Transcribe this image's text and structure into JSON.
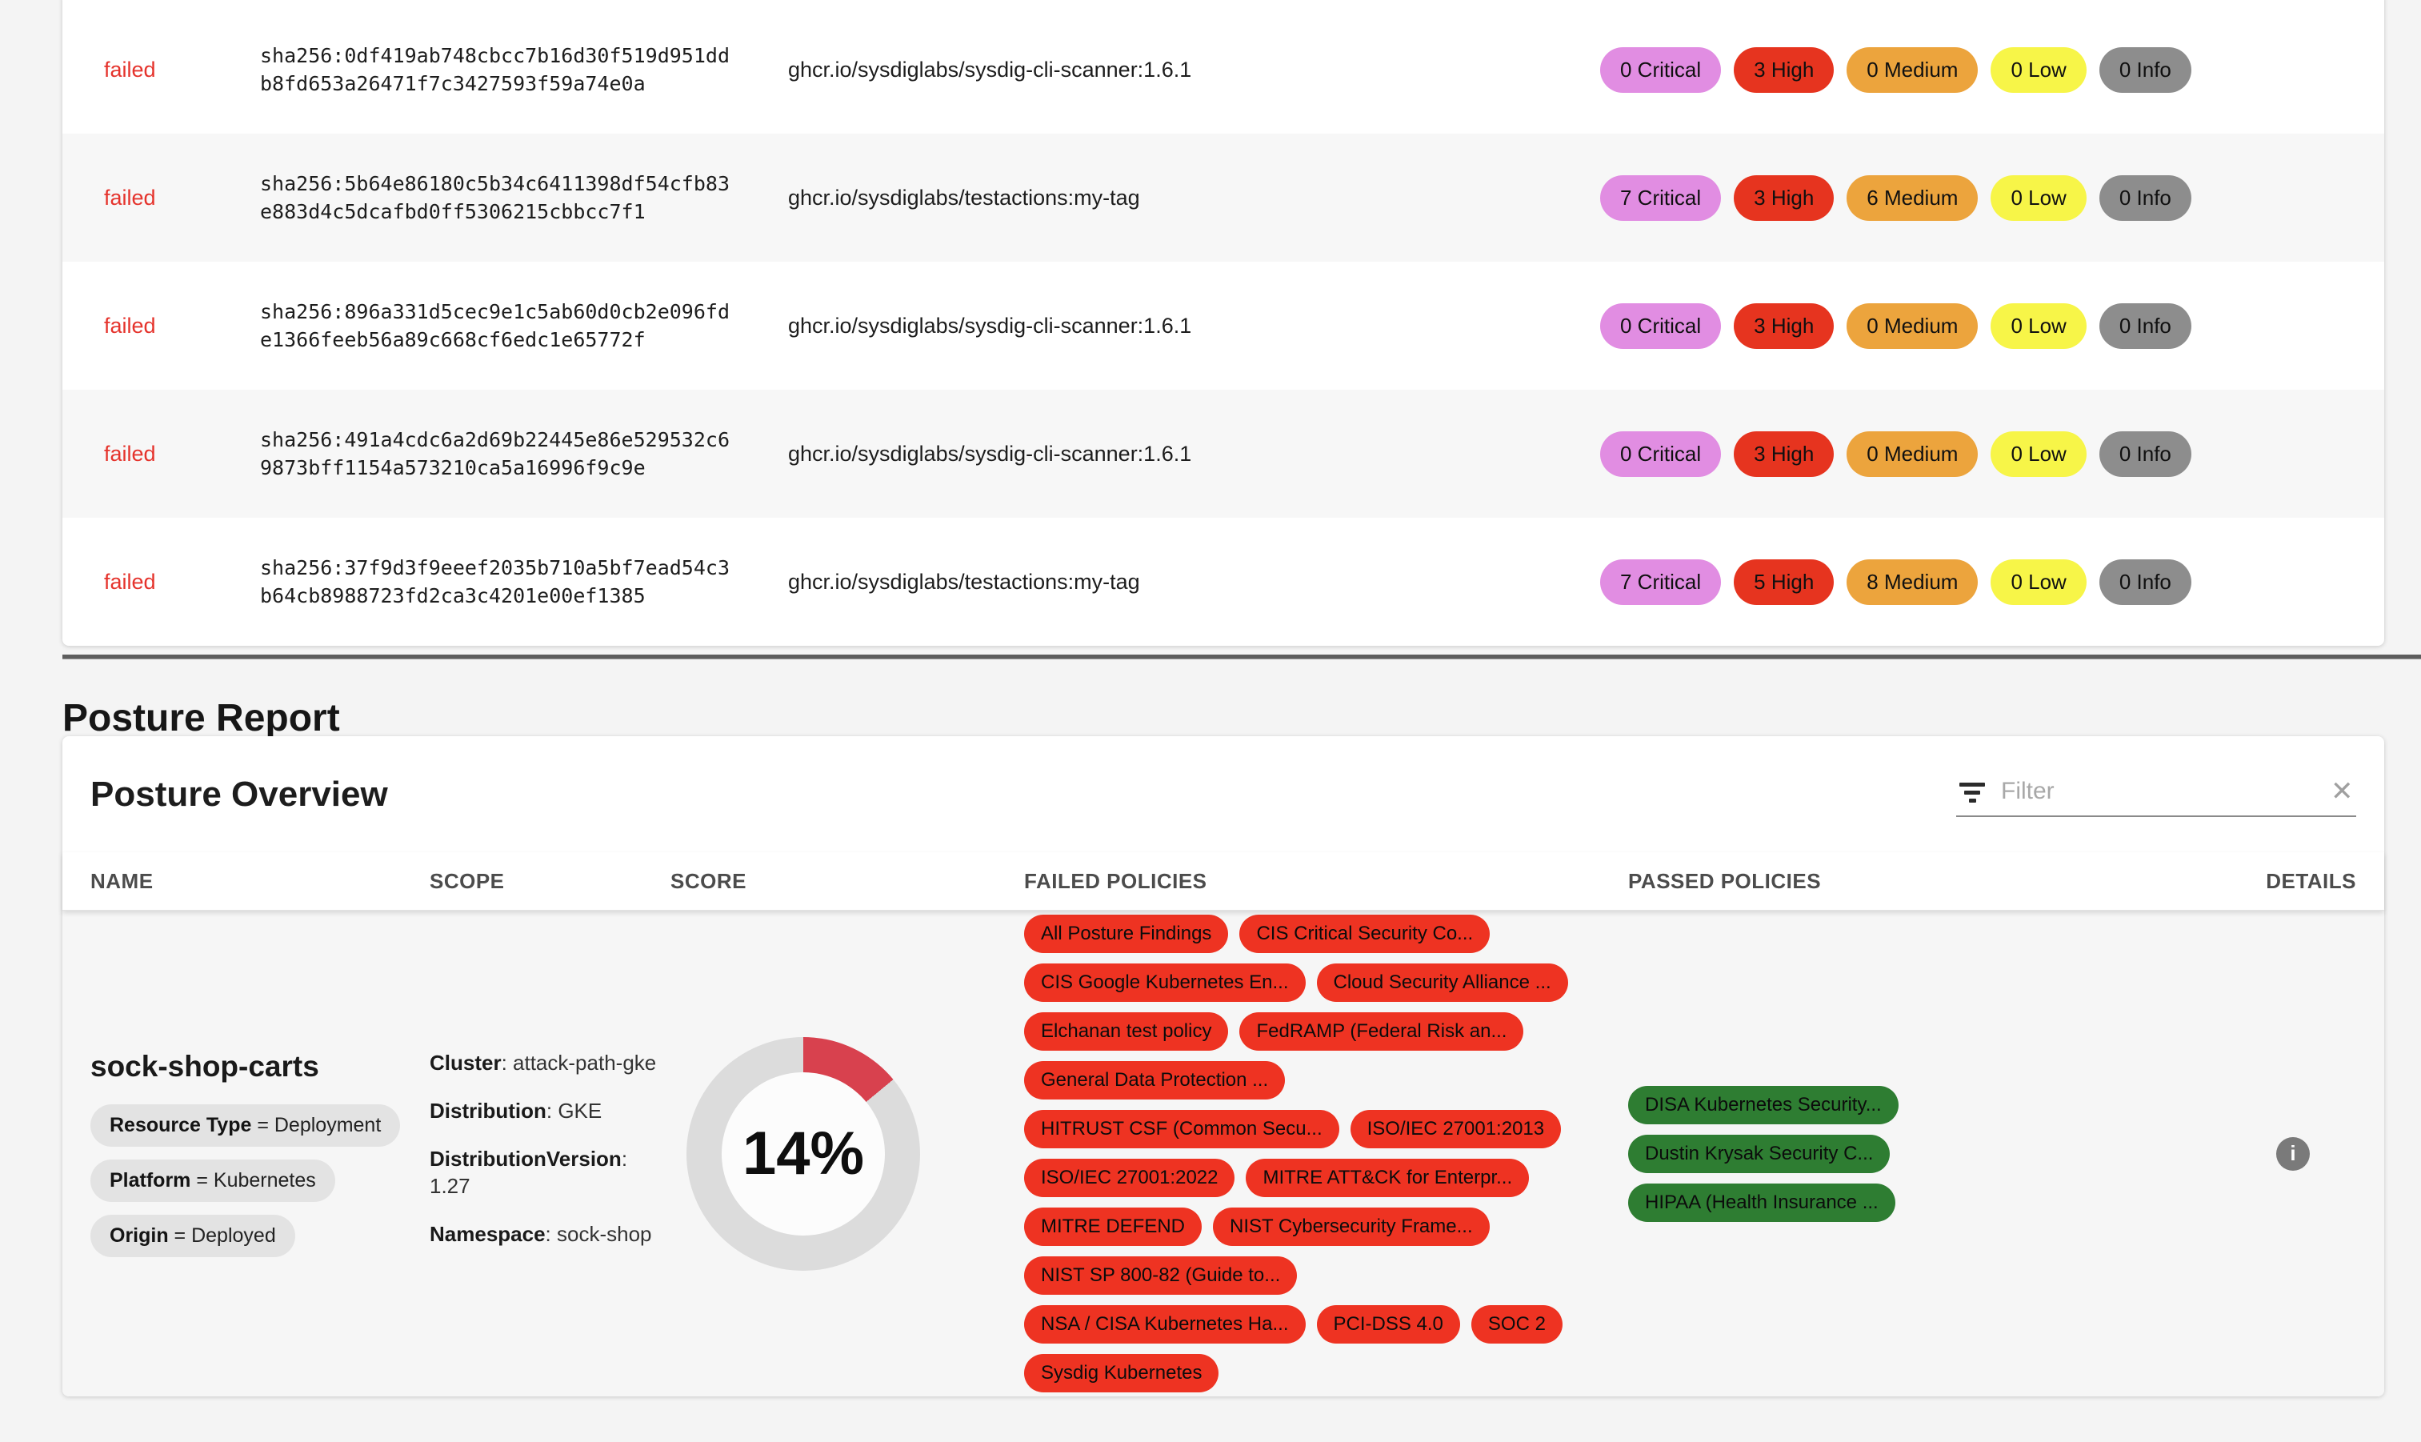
{
  "page": {
    "section_title": "Posture Report"
  },
  "colors": {
    "critical": "#e18de2",
    "high": "#e6341f",
    "medium": "#eca43d",
    "low": "#f7f548",
    "info": "#8d8d8d",
    "failed_text": "#e5332c",
    "failed_policy": "#ee3322",
    "passed_policy": "#2e7d32",
    "donut_fill": "#d8414e",
    "donut_track": "#dcdcdc"
  },
  "icons": {
    "info": "i",
    "clear": "✕"
  },
  "vuln_table": {
    "rows": [
      {
        "status": "failed",
        "digest_line1": "sha256:0df419ab748cbcc7b16d30f519d951dd",
        "digest_line2": "b8fd653a26471f7c3427593f59a74e0a",
        "image": "ghcr.io/sysdiglabs/sysdig-cli-scanner:1.6.1",
        "badges": {
          "critical": "0 Critical",
          "high": "3 High",
          "medium": "0 Medium",
          "low": "0 Low",
          "info": "0 Info"
        }
      },
      {
        "status": "failed",
        "digest_line1": "sha256:5b64e86180c5b34c6411398df54cfb83",
        "digest_line2": "e883d4c5dcafbd0ff5306215cbbcc7f1",
        "image": "ghcr.io/sysdiglabs/testactions:my-tag",
        "badges": {
          "critical": "7 Critical",
          "high": "3 High",
          "medium": "6 Medium",
          "low": "0 Low",
          "info": "0 Info"
        }
      },
      {
        "status": "failed",
        "digest_line1": "sha256:896a331d5cec9e1c5ab60d0cb2e096fd",
        "digest_line2": "e1366feeb56a89c668cf6edc1e65772f",
        "image": "ghcr.io/sysdiglabs/sysdig-cli-scanner:1.6.1",
        "badges": {
          "critical": "0 Critical",
          "high": "3 High",
          "medium": "0 Medium",
          "low": "0 Low",
          "info": "0 Info"
        }
      },
      {
        "status": "failed",
        "digest_line1": "sha256:491a4cdc6a2d69b22445e86e529532c6",
        "digest_line2": "9873bff1154a573210ca5a16996f9c9e",
        "image": "ghcr.io/sysdiglabs/sysdig-cli-scanner:1.6.1",
        "badges": {
          "critical": "0 Critical",
          "high": "3 High",
          "medium": "0 Medium",
          "low": "0 Low",
          "info": "0 Info"
        }
      },
      {
        "status": "failed",
        "digest_line1": "sha256:37f9d3f9eeef2035b710a5bf7ead54c3",
        "digest_line2": "b64cb8988723fd2ca3c4201e00ef1385",
        "image": "ghcr.io/sysdiglabs/testactions:my-tag",
        "badges": {
          "critical": "7 Critical",
          "high": "5 High",
          "medium": "8 Medium",
          "low": "0 Low",
          "info": "0 Info"
        }
      }
    ]
  },
  "posture": {
    "card_title": "Posture Overview",
    "filter_placeholder": "Filter",
    "headers": [
      "NAME",
      "SCOPE",
      "SCORE",
      "FAILED POLICIES",
      "PASSED POLICIES",
      "DETAILS"
    ],
    "row": {
      "name": "sock-shop-carts",
      "labels": [
        {
          "key": "Resource Type",
          "rest": " = Deployment"
        },
        {
          "key": "Platform",
          "rest": " = Kubernetes"
        },
        {
          "key": "Origin",
          "rest": " = Deployed"
        }
      ],
      "scope": [
        {
          "key": "Cluster",
          "rest": ": attack-path-gke"
        },
        {
          "key": "Distribution",
          "rest": ": GKE"
        },
        {
          "key": "DistributionVersion",
          "rest": ": 1.27"
        },
        {
          "key": "Namespace",
          "rest": ": sock-shop"
        }
      ],
      "score_label": "14%",
      "score_percent": 14,
      "failed_policies": [
        "All Posture Findings",
        "CIS Critical Security Co...",
        "CIS Google Kubernetes En...",
        "Cloud Security Alliance ...",
        "Elchanan test policy",
        "FedRAMP (Federal Risk an...",
        "General Data Protection ...",
        "HITRUST CSF (Common Secu...",
        "ISO/IEC 27001:2013",
        "ISO/IEC 27001:2022",
        "MITRE ATT&CK for Enterpr...",
        "MITRE DEFEND",
        "NIST Cybersecurity Frame...",
        "NIST SP 800-82 (Guide to...",
        "NSA / CISA Kubernetes Ha...",
        "PCI-DSS 4.0",
        "SOC 2",
        "Sysdig Kubernetes"
      ],
      "passed_policies": [
        "DISA Kubernetes Security...",
        "Dustin Krysak Security C...",
        "HIPAA (Health Insurance ..."
      ]
    }
  }
}
